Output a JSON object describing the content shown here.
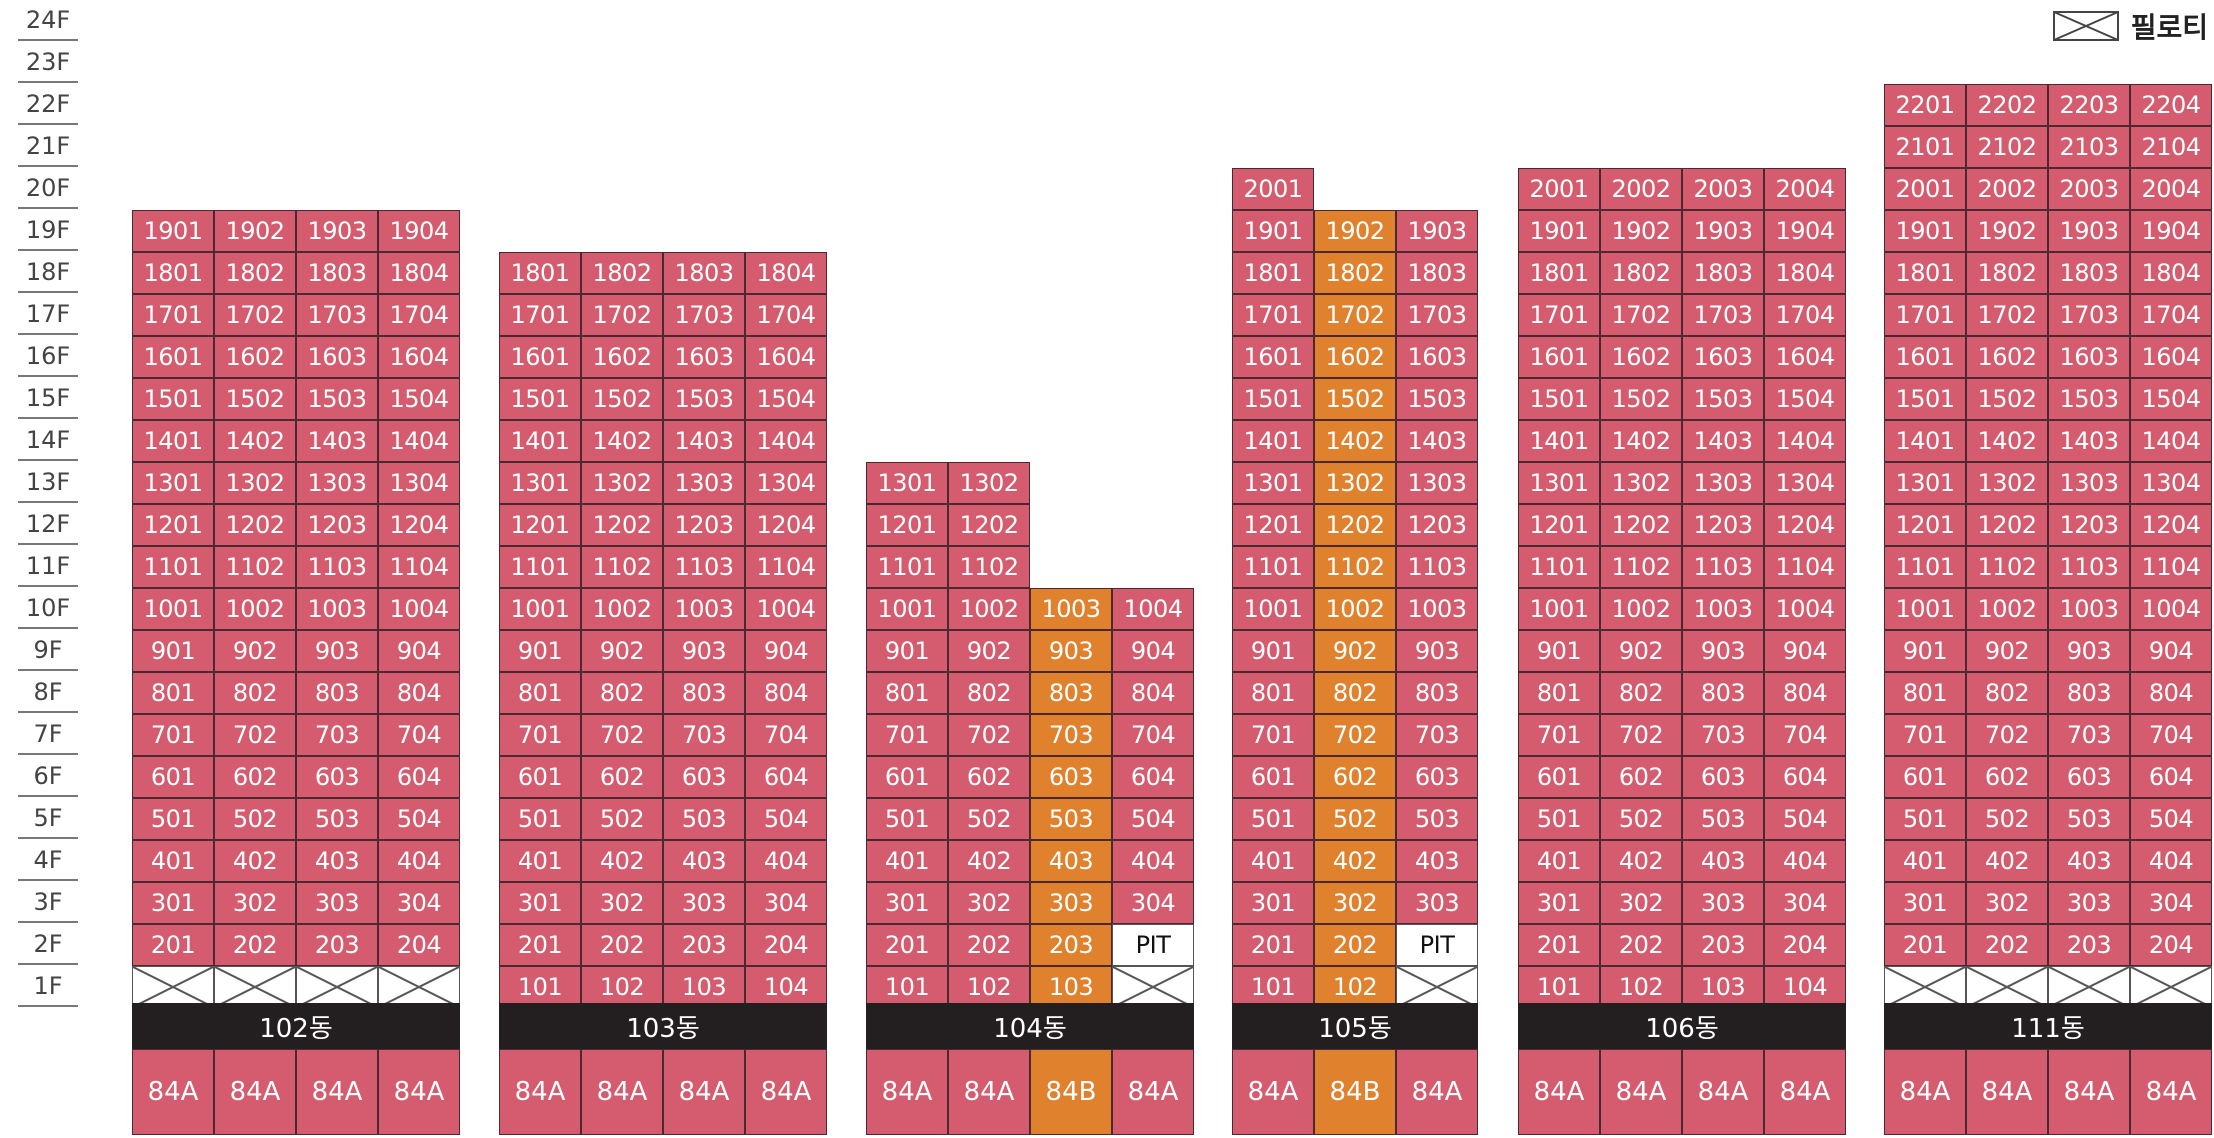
{
  "colors": {
    "unit_84A": "#d45c6e",
    "unit_84B": "#e0812e",
    "name_bar": "#231f20"
  },
  "floors": [
    "24F",
    "23F",
    "22F",
    "21F",
    "20F",
    "19F",
    "18F",
    "17F",
    "16F",
    "15F",
    "14F",
    "13F",
    "12F",
    "11F",
    "10F",
    "9F",
    "8F",
    "7F",
    "6F",
    "5F",
    "4F",
    "3F",
    "2F",
    "1F"
  ],
  "legend": {
    "label": "필로티",
    "icon": "piloti-cross-box-icon"
  },
  "buildings": [
    {
      "name": "102동",
      "types": [
        "84A",
        "84A",
        "84A",
        "84A"
      ],
      "columns": [
        {
          "type": "84A",
          "floors": {
            "1": "piloti",
            "2": "201",
            "3": "301",
            "4": "401",
            "5": "501",
            "6": "601",
            "7": "701",
            "8": "801",
            "9": "901",
            "10": "1001",
            "11": "1101",
            "12": "1201",
            "13": "1301",
            "14": "1401",
            "15": "1501",
            "16": "1601",
            "17": "1701",
            "18": "1801",
            "19": "1901"
          }
        },
        {
          "type": "84A",
          "floors": {
            "1": "piloti",
            "2": "202",
            "3": "302",
            "4": "402",
            "5": "502",
            "6": "602",
            "7": "702",
            "8": "802",
            "9": "902",
            "10": "1002",
            "11": "1102",
            "12": "1202",
            "13": "1302",
            "14": "1402",
            "15": "1502",
            "16": "1602",
            "17": "1702",
            "18": "1802",
            "19": "1902"
          }
        },
        {
          "type": "84A",
          "floors": {
            "1": "piloti",
            "2": "203",
            "3": "303",
            "4": "403",
            "5": "503",
            "6": "603",
            "7": "703",
            "8": "803",
            "9": "903",
            "10": "1003",
            "11": "1103",
            "12": "1203",
            "13": "1303",
            "14": "1403",
            "15": "1503",
            "16": "1603",
            "17": "1703",
            "18": "1803",
            "19": "1903"
          }
        },
        {
          "type": "84A",
          "floors": {
            "1": "piloti",
            "2": "204",
            "3": "304",
            "4": "404",
            "5": "504",
            "6": "604",
            "7": "704",
            "8": "804",
            "9": "904",
            "10": "1004",
            "11": "1104",
            "12": "1204",
            "13": "1304",
            "14": "1404",
            "15": "1504",
            "16": "1604",
            "17": "1704",
            "18": "1804",
            "19": "1904"
          }
        }
      ]
    },
    {
      "name": "103동",
      "types": [
        "84A",
        "84A",
        "84A",
        "84A"
      ],
      "columns": [
        {
          "type": "84A",
          "floors": {
            "1": "101",
            "2": "201",
            "3": "301",
            "4": "401",
            "5": "501",
            "6": "601",
            "7": "701",
            "8": "801",
            "9": "901",
            "10": "1001",
            "11": "1101",
            "12": "1201",
            "13": "1301",
            "14": "1401",
            "15": "1501",
            "16": "1601",
            "17": "1701",
            "18": "1801"
          }
        },
        {
          "type": "84A",
          "floors": {
            "1": "102",
            "2": "202",
            "3": "302",
            "4": "402",
            "5": "502",
            "6": "602",
            "7": "702",
            "8": "802",
            "9": "902",
            "10": "1002",
            "11": "1102",
            "12": "1202",
            "13": "1302",
            "14": "1402",
            "15": "1502",
            "16": "1602",
            "17": "1702",
            "18": "1802"
          }
        },
        {
          "type": "84A",
          "floors": {
            "1": "103",
            "2": "203",
            "3": "303",
            "4": "403",
            "5": "503",
            "6": "603",
            "7": "703",
            "8": "803",
            "9": "903",
            "10": "1003",
            "11": "1103",
            "12": "1203",
            "13": "1303",
            "14": "1403",
            "15": "1503",
            "16": "1603",
            "17": "1703",
            "18": "1803"
          }
        },
        {
          "type": "84A",
          "floors": {
            "1": "104",
            "2": "204",
            "3": "304",
            "4": "404",
            "5": "504",
            "6": "604",
            "7": "704",
            "8": "804",
            "9": "904",
            "10": "1004",
            "11": "1104",
            "12": "1204",
            "13": "1304",
            "14": "1404",
            "15": "1504",
            "16": "1604",
            "17": "1704",
            "18": "1804"
          }
        }
      ]
    },
    {
      "name": "104동",
      "types": [
        "84A",
        "84A",
        "84B",
        "84A"
      ],
      "columns": [
        {
          "type": "84A",
          "floors": {
            "1": "101",
            "2": "201",
            "3": "301",
            "4": "401",
            "5": "501",
            "6": "601",
            "7": "701",
            "8": "801",
            "9": "901",
            "10": "1001",
            "11": "1101",
            "12": "1201",
            "13": "1301"
          }
        },
        {
          "type": "84A",
          "floors": {
            "1": "102",
            "2": "202",
            "3": "302",
            "4": "402",
            "5": "502",
            "6": "602",
            "7": "702",
            "8": "802",
            "9": "902",
            "10": "1002",
            "11": "1102",
            "12": "1202",
            "13": "1302"
          }
        },
        {
          "type": "84B",
          "floors": {
            "1": "103",
            "2": "203",
            "3": "303",
            "4": "403",
            "5": "503",
            "6": "603",
            "7": "703",
            "8": "803",
            "9": "903",
            "10": "1003"
          }
        },
        {
          "type": "84A",
          "floors": {
            "1": "piloti",
            "2": "PIT",
            "3": "304",
            "4": "404",
            "5": "504",
            "6": "604",
            "7": "704",
            "8": "804",
            "9": "904",
            "10": "1004"
          }
        }
      ]
    },
    {
      "name": "105동",
      "types": [
        "84A",
        "84B",
        "84A"
      ],
      "columns": [
        {
          "type": "84A",
          "floors": {
            "1": "101",
            "2": "201",
            "3": "301",
            "4": "401",
            "5": "501",
            "6": "601",
            "7": "701",
            "8": "801",
            "9": "901",
            "10": "1001",
            "11": "1101",
            "12": "1201",
            "13": "1301",
            "14": "1401",
            "15": "1501",
            "16": "1601",
            "17": "1701",
            "18": "1801",
            "19": "1901",
            "20": "2001"
          }
        },
        {
          "type": "84B",
          "floors": {
            "1": "102",
            "2": "202",
            "3": "302",
            "4": "402",
            "5": "502",
            "6": "602",
            "7": "702",
            "8": "802",
            "9": "902",
            "10": "1002",
            "11": "1102",
            "12": "1202",
            "13": "1302",
            "14": "1402",
            "15": "1502",
            "16": "1602",
            "17": "1702",
            "18": "1802",
            "19": "1902"
          }
        },
        {
          "type": "84A",
          "floors": {
            "1": "piloti",
            "2": "PIT",
            "3": "303",
            "4": "403",
            "5": "503",
            "6": "603",
            "7": "703",
            "8": "803",
            "9": "903",
            "10": "1003",
            "11": "1103",
            "12": "1203",
            "13": "1303",
            "14": "1403",
            "15": "1503",
            "16": "1603",
            "17": "1703",
            "18": "1803",
            "19": "1903"
          }
        }
      ]
    },
    {
      "name": "106동",
      "types": [
        "84A",
        "84A",
        "84A",
        "84A"
      ],
      "columns": [
        {
          "type": "84A",
          "floors": {
            "1": "101",
            "2": "201",
            "3": "301",
            "4": "401",
            "5": "501",
            "6": "601",
            "7": "701",
            "8": "801",
            "9": "901",
            "10": "1001",
            "11": "1101",
            "12": "1201",
            "13": "1301",
            "14": "1401",
            "15": "1501",
            "16": "1601",
            "17": "1701",
            "18": "1801",
            "19": "1901",
            "20": "2001"
          }
        },
        {
          "type": "84A",
          "floors": {
            "1": "102",
            "2": "202",
            "3": "302",
            "4": "402",
            "5": "502",
            "6": "602",
            "7": "702",
            "8": "802",
            "9": "902",
            "10": "1002",
            "11": "1102",
            "12": "1202",
            "13": "1302",
            "14": "1402",
            "15": "1502",
            "16": "1602",
            "17": "1702",
            "18": "1802",
            "19": "1902",
            "20": "2002"
          }
        },
        {
          "type": "84A",
          "floors": {
            "1": "103",
            "2": "203",
            "3": "303",
            "4": "403",
            "5": "503",
            "6": "603",
            "7": "703",
            "8": "803",
            "9": "903",
            "10": "1003",
            "11": "1103",
            "12": "1203",
            "13": "1303",
            "14": "1403",
            "15": "1503",
            "16": "1603",
            "17": "1703",
            "18": "1803",
            "19": "1903",
            "20": "2003"
          }
        },
        {
          "type": "84A",
          "floors": {
            "1": "104",
            "2": "204",
            "3": "304",
            "4": "404",
            "5": "504",
            "6": "604",
            "7": "704",
            "8": "804",
            "9": "904",
            "10": "1004",
            "11": "1104",
            "12": "1204",
            "13": "1304",
            "14": "1404",
            "15": "1504",
            "16": "1604",
            "17": "1704",
            "18": "1804",
            "19": "1904",
            "20": "2004"
          }
        }
      ]
    },
    {
      "name": "111동",
      "types": [
        "84A",
        "84A",
        "84A",
        "84A"
      ],
      "columns": [
        {
          "type": "84A",
          "floors": {
            "1": "piloti",
            "2": "201",
            "3": "301",
            "4": "401",
            "5": "501",
            "6": "601",
            "7": "701",
            "8": "801",
            "9": "901",
            "10": "1001",
            "11": "1101",
            "12": "1201",
            "13": "1301",
            "14": "1401",
            "15": "1501",
            "16": "1601",
            "17": "1701",
            "18": "1801",
            "19": "1901",
            "20": "2001",
            "21": "2101",
            "22": "2201"
          }
        },
        {
          "type": "84A",
          "floors": {
            "1": "piloti",
            "2": "202",
            "3": "302",
            "4": "402",
            "5": "502",
            "6": "602",
            "7": "702",
            "8": "802",
            "9": "902",
            "10": "1002",
            "11": "1102",
            "12": "1202",
            "13": "1302",
            "14": "1402",
            "15": "1502",
            "16": "1602",
            "17": "1702",
            "18": "1802",
            "19": "1902",
            "20": "2002",
            "21": "2102",
            "22": "2202"
          }
        },
        {
          "type": "84A",
          "floors": {
            "1": "piloti",
            "2": "203",
            "3": "303",
            "4": "403",
            "5": "503",
            "6": "603",
            "7": "703",
            "8": "803",
            "9": "903",
            "10": "1003",
            "11": "1103",
            "12": "1203",
            "13": "1303",
            "14": "1403",
            "15": "1503",
            "16": "1603",
            "17": "1703",
            "18": "1803",
            "19": "1903",
            "20": "2003",
            "21": "2103",
            "22": "2203"
          }
        },
        {
          "type": "84A",
          "floors": {
            "1": "piloti",
            "2": "204",
            "3": "304",
            "4": "404",
            "5": "504",
            "6": "604",
            "7": "704",
            "8": "804",
            "9": "904",
            "10": "1004",
            "11": "1104",
            "12": "1204",
            "13": "1304",
            "14": "1404",
            "15": "1504",
            "16": "1604",
            "17": "1704",
            "18": "1804",
            "19": "1904",
            "20": "2004",
            "21": "2104",
            "22": "2204"
          }
        }
      ]
    }
  ]
}
